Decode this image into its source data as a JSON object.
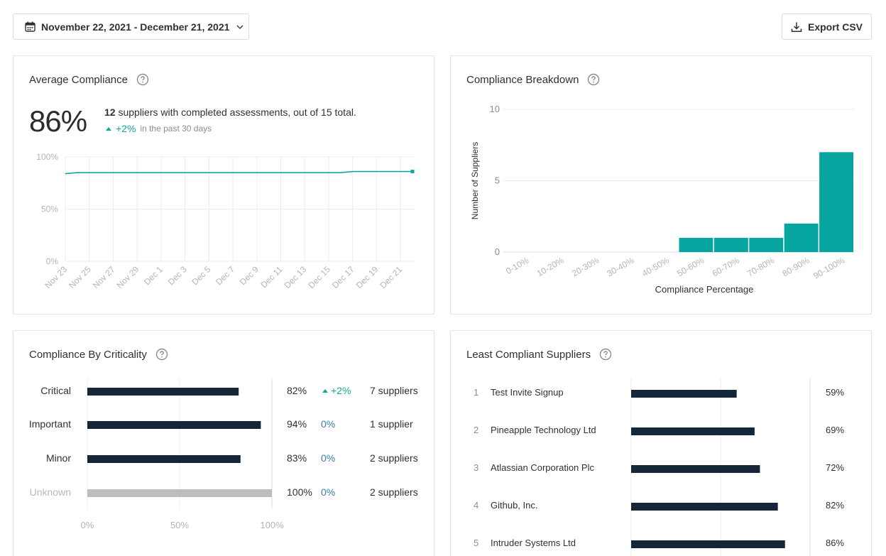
{
  "toolbar": {
    "date_range": "November 22, 2021 - December 21, 2021",
    "export_label": "Export CSV"
  },
  "avg_compliance": {
    "title": "Average Compliance",
    "value": "86%",
    "completed_count": "12",
    "summary_rest": " suppliers with completed assessments, out of 15 total.",
    "delta": "+2%",
    "delta_period": "in the past 30 days",
    "chart_data": {
      "type": "line",
      "x": [
        "Nov 23",
        "Nov 24",
        "Nov 25",
        "Nov 26",
        "Nov 27",
        "Nov 28",
        "Nov 29",
        "Nov 30",
        "Dec 1",
        "Dec 2",
        "Dec 3",
        "Dec 4",
        "Dec 5",
        "Dec 6",
        "Dec 7",
        "Dec 8",
        "Dec 9",
        "Dec 10",
        "Dec 11",
        "Dec 12",
        "Dec 13",
        "Dec 14",
        "Dec 15",
        "Dec 16",
        "Dec 17",
        "Dec 18",
        "Dec 19",
        "Dec 20",
        "Dec 21",
        "Dec 22"
      ],
      "xticks": [
        "Nov 23",
        "Nov 25",
        "Nov 27",
        "Nov 29",
        "Dec 1",
        "Dec 3",
        "Dec 5",
        "Dec 7",
        "Dec 9",
        "Dec 11",
        "Dec 13",
        "Dec 15",
        "Dec 17",
        "Dec 19",
        "Dec 21"
      ],
      "values": [
        84,
        85,
        85,
        85,
        85,
        85,
        85,
        85,
        85,
        85,
        85,
        85,
        85,
        85,
        85,
        85,
        85,
        85,
        85,
        85,
        85,
        85,
        85,
        85,
        86,
        86,
        86,
        86,
        86,
        86
      ],
      "yticks": [
        "0%",
        "50%",
        "100%"
      ],
      "ylim": [
        0,
        100
      ],
      "color": "#13a69c",
      "grid": true
    }
  },
  "breakdown": {
    "title": "Compliance Breakdown",
    "chart_data": {
      "type": "bar",
      "categories": [
        "0-10%",
        "10-20%",
        "20-30%",
        "30-40%",
        "40-50%",
        "50-60%",
        "60-70%",
        "70-80%",
        "80-90%",
        "90-100%"
      ],
      "values": [
        0,
        0,
        0,
        0,
        0,
        1,
        1,
        1,
        2,
        7
      ],
      "xlabel": "Compliance Percentage",
      "ylabel": "Number of Suppliers",
      "yticks": [
        "0",
        "5",
        "10"
      ],
      "ylim": [
        0,
        10
      ],
      "color": "#06a59f",
      "grid": true
    }
  },
  "criticality": {
    "title": "Compliance By Criticality",
    "rows": [
      {
        "label": "Critical",
        "value": 82,
        "pct": "82%",
        "change": "+2%",
        "change_up": true,
        "count": "7 suppliers",
        "unknown": false
      },
      {
        "label": "Important",
        "value": 94,
        "pct": "94%",
        "change": "0%",
        "change_up": false,
        "count": "1 supplier",
        "unknown": false
      },
      {
        "label": "Minor",
        "value": 83,
        "pct": "83%",
        "change": "0%",
        "change_up": false,
        "count": "2 suppliers",
        "unknown": false
      },
      {
        "label": "Unknown",
        "value": 100,
        "pct": "100%",
        "change": "0%",
        "change_up": false,
        "count": "2 suppliers",
        "unknown": true
      }
    ],
    "axis": [
      "0%",
      "50%",
      "100%"
    ],
    "bar_color": "#152639",
    "unknown_color": "#bdbdbf"
  },
  "least": {
    "title": "Least Compliant Suppliers",
    "rows": [
      {
        "rank": "1",
        "name": "Test Invite Signup",
        "value": 59,
        "pct": "59%"
      },
      {
        "rank": "2",
        "name": "Pineapple Technology Ltd",
        "value": 69,
        "pct": "69%"
      },
      {
        "rank": "3",
        "name": "Atlassian Corporation Plc",
        "value": 72,
        "pct": "72%"
      },
      {
        "rank": "4",
        "name": "Github, Inc.",
        "value": 82,
        "pct": "82%"
      },
      {
        "rank": "5",
        "name": "Intruder Systems Ltd",
        "value": 86,
        "pct": "86%"
      }
    ],
    "bar_color": "#152639"
  }
}
